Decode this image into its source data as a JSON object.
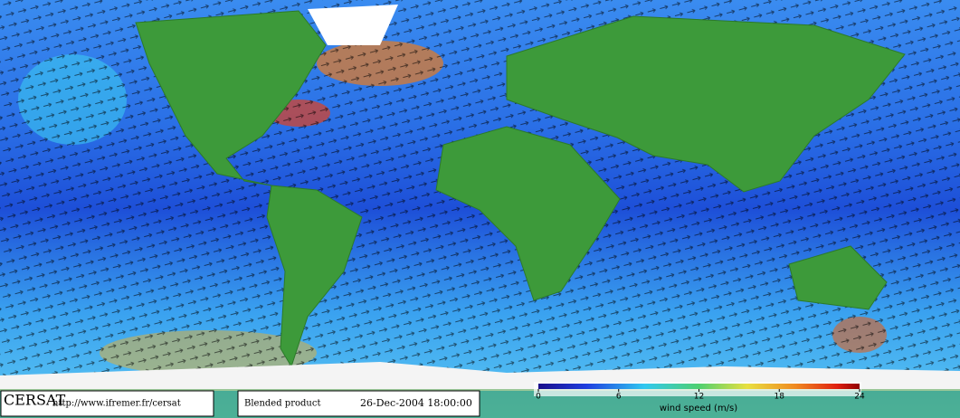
{
  "logo": "CERSAT",
  "url": "http://www.ifremer.fr/cersat",
  "product": "Blended product",
  "datetime": "26-Dec-2004 18:00:00",
  "colorbar": {
    "label": "wind speed (m/s)",
    "lim": [
      0,
      24
    ],
    "ticks": [
      0,
      6,
      12,
      18,
      24
    ]
  }
}
